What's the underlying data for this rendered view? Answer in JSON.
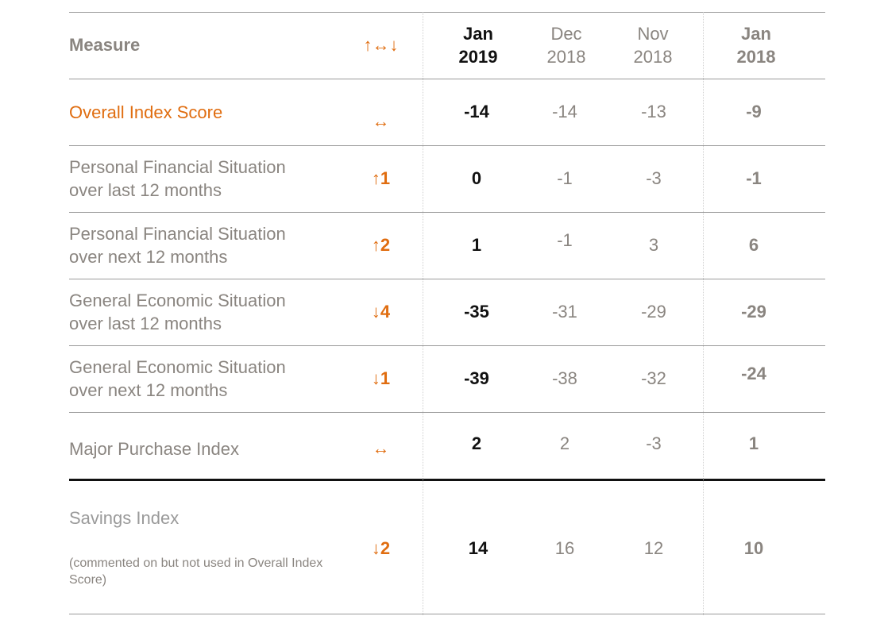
{
  "header": {
    "measure": "Measure",
    "trend_symbol": "↑↔↓",
    "columns": [
      {
        "month": "Jan",
        "year": "2019"
      },
      {
        "month": "Dec",
        "year": "2018"
      },
      {
        "month": "Nov",
        "year": "2018"
      },
      {
        "month": "Jan",
        "year": "2018"
      }
    ]
  },
  "rows": [
    {
      "label_lines": [
        "Overall Index Score"
      ],
      "trend": "↔",
      "values": [
        "-14",
        "-14",
        "-13",
        "-9"
      ]
    },
    {
      "label_lines": [
        "Personal Financial Situation",
        "over last 12 months"
      ],
      "trend": "↑1",
      "values": [
        "0",
        "-1",
        "-3",
        "-1"
      ]
    },
    {
      "label_lines": [
        "Personal Financial Situation",
        "over next 12 months"
      ],
      "trend": "↑2",
      "values": [
        "1",
        "-1",
        "3",
        "6"
      ]
    },
    {
      "label_lines": [
        "General Economic Situation",
        "over last 12 months"
      ],
      "trend": "↓4",
      "values": [
        "-35",
        "-31",
        "-29",
        "-29"
      ]
    },
    {
      "label_lines": [
        "General Economic Situation",
        "over next 12 months"
      ],
      "trend": "↓1",
      "values": [
        "-39",
        "-38",
        "-32",
        "-24"
      ]
    },
    {
      "label_lines": [
        "Major Purchase Index"
      ],
      "trend": "↔",
      "values": [
        "2",
        "2",
        "-3",
        "1"
      ]
    }
  ],
  "savings": {
    "label": "Savings Index",
    "note": "(commented on but not used in Overall Index Score)",
    "trend": "↓2",
    "values": [
      "14",
      "16",
      "12",
      "10"
    ]
  },
  "colors": {
    "accent": "#e06d10",
    "text_grey": "#8a8580",
    "text_dark": "#111111"
  }
}
